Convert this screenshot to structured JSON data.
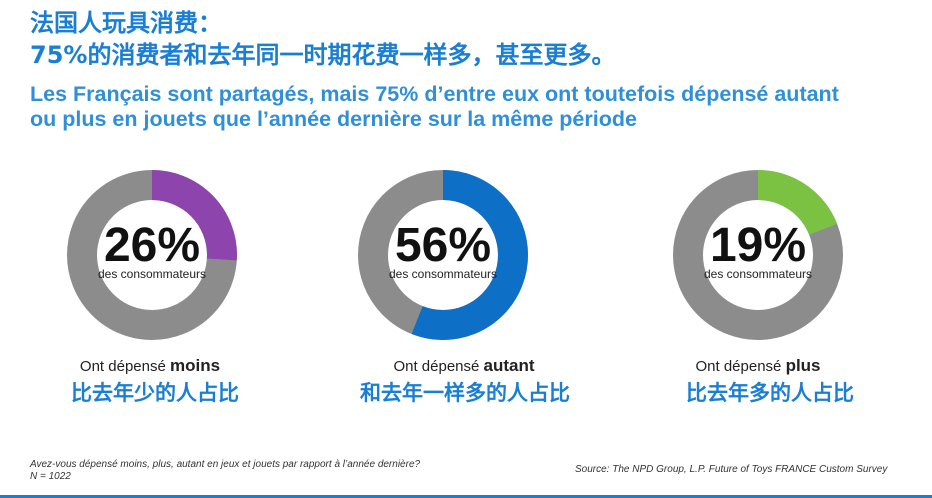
{
  "header": {
    "title_line1": "法国人玩具消费：",
    "title_line2": "75%的消费者和去年同一时期花费一样多，甚至更多。",
    "subtitle_line1": "Les Français sont partagés, mais 75% d’entre eux ont toutefois dépensé autant",
    "subtitle_line2": "ou plus en jouets que l’année dernière sur la même période"
  },
  "chart_data": {
    "type": "pie",
    "variant": "donut",
    "title": "Les Français sont partagés, mais 75% d’entre eux ont toutefois dépensé autant ou plus en jouets que l’année dernière sur la même période",
    "series": [
      {
        "name": "moins",
        "value": 26,
        "percent_label": "26%",
        "unit_label": "des consommateurs",
        "caption_prefix": "Ont dépensé",
        "caption_bold": "moins",
        "caption_zh": "比去年少的人占比",
        "color": "#8e44ad"
      },
      {
        "name": "autant",
        "value": 56,
        "percent_label": "56%",
        "unit_label": "des consommateurs",
        "caption_prefix": "Ont dépensé",
        "caption_bold": "autant",
        "caption_zh": "和去年一样多的人占比",
        "color": "#0d6fc6"
      },
      {
        "name": "plus",
        "value": 19,
        "percent_label": "19%",
        "unit_label": "des consommateurs",
        "caption_prefix": "Ont dépensé",
        "caption_bold": "plus",
        "caption_zh": "比去年多的人占比",
        "color": "#7cc242"
      }
    ],
    "remainder_color": "#8c8c8c"
  },
  "footer": {
    "footnote": "Avez-vous dépensé moins, plus, autant en jeux et jouets par rapport à l’année dernière? N = 1022",
    "source": "Source: The NPD Group, L.P. Future of Toys FRANCE Custom Survey"
  }
}
